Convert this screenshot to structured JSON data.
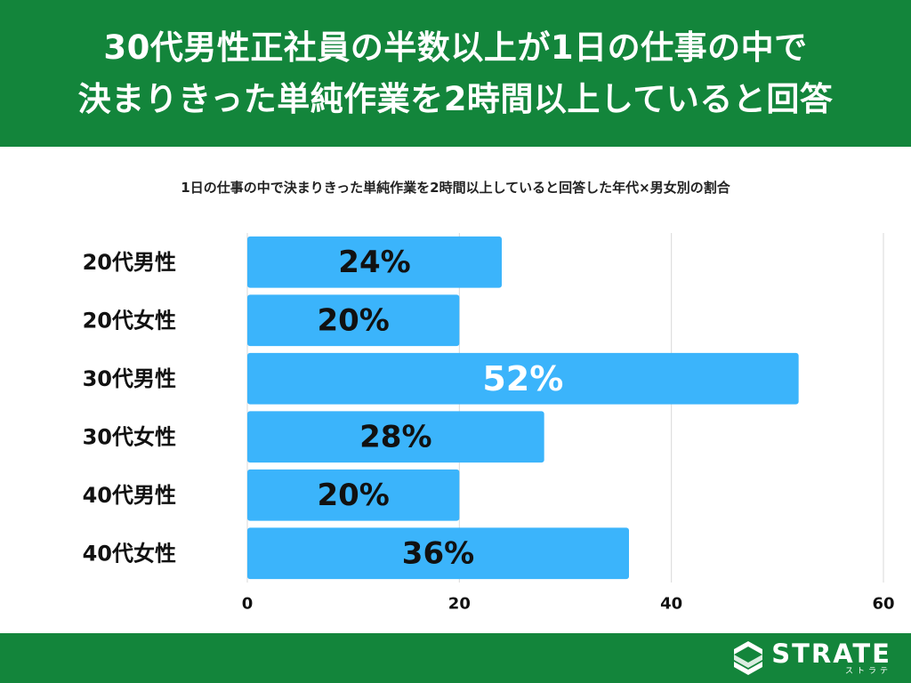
{
  "header": {
    "title_line1": "30代男性正社員の半数以上が1日の仕事の中で",
    "title_line2": "決まりきった単純作業を2時間以上していると回答"
  },
  "footer": {
    "logo_text": "STRATE",
    "logo_subtext": "ストラテ"
  },
  "colors": {
    "header_bg": "#13853b",
    "bar": "#3bb4fb",
    "grid": "#d9d9d9",
    "text": "#111111",
    "label_highlight": "#ffffff"
  },
  "chart_data": {
    "type": "bar",
    "orientation": "horizontal",
    "title": "1日の仕事の中で決まりきった単純作業を2時間以上していると回答した年代×男女別の割合",
    "categories": [
      "20代男性",
      "20代女性",
      "30代男性",
      "30代女性",
      "40代男性",
      "40代女性"
    ],
    "values": [
      24,
      20,
      52,
      28,
      20,
      36
    ],
    "value_labels": [
      "24%",
      "20%",
      "52%",
      "28%",
      "20%",
      "36%"
    ],
    "highlight_index": 2,
    "xlim": [
      0,
      60
    ],
    "xticks": [
      0,
      20,
      40,
      60
    ],
    "xlabel": "",
    "ylabel": "",
    "grid": true,
    "legend": "none"
  }
}
